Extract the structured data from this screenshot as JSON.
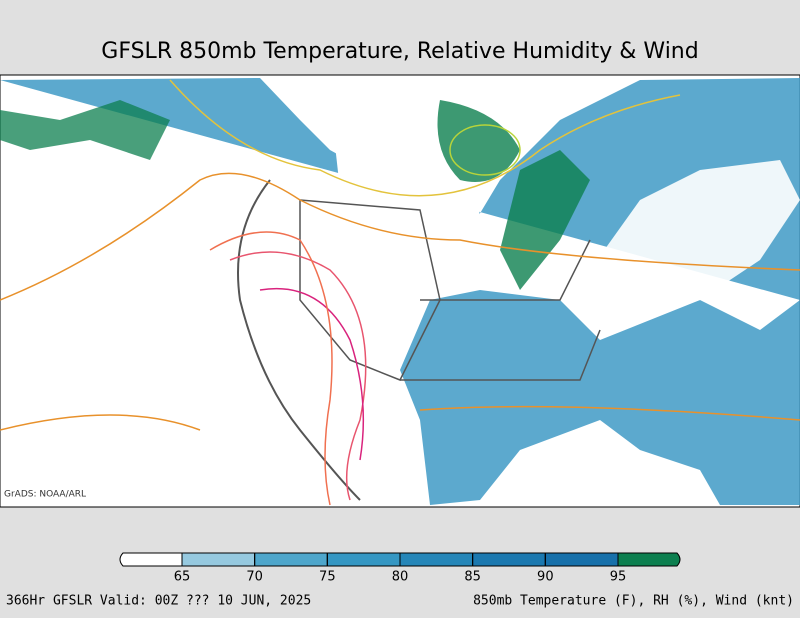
{
  "title": "GFSLR 850mb Temperature, Relative Humidity & Wind",
  "credit": "GrADS: NOAA/ARL",
  "colorbar": {
    "ticks": [
      65,
      70,
      75,
      80,
      85,
      90,
      95
    ],
    "colors": [
      "#ffffff",
      "#96c9df",
      "#4ea6cb",
      "#3597c3",
      "#2586b8",
      "#1b78af",
      "#1770aa",
      "#0c7f4f"
    ]
  },
  "footer": {
    "left": "366Hr GFSLR Valid: 00Z ??? 10 JUN, 2025",
    "right": "850mb Temperature (F), RH (%), Wind (knt)"
  }
}
